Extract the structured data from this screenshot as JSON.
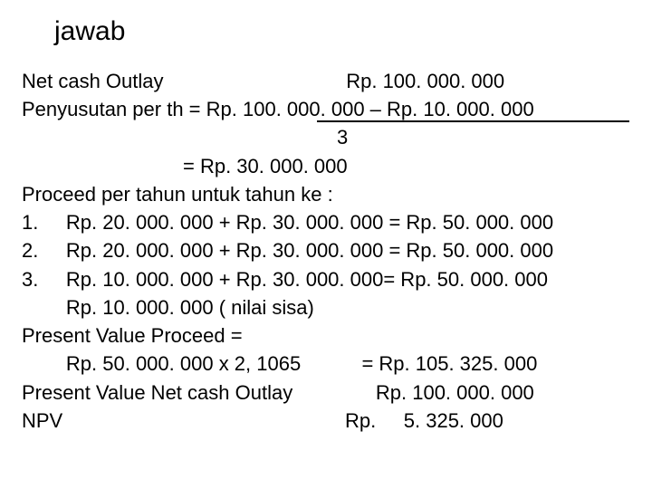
{
  "title": "jawab",
  "lines": {
    "l1": "Net cash Outlay                                 Rp. 100. 000. 000",
    "l2": "Penyusutan per th = Rp. 100. 000. 000 – Rp. 10. 000. 000",
    "l3": "3",
    "l4": "= Rp. 30. 000. 000",
    "l5": "Proceed per tahun untuk tahun ke :",
    "l6": "1.     Rp. 20. 000. 000 + Rp. 30. 000. 000 = Rp. 50. 000. 000",
    "l7": "2.     Rp. 20. 000. 000 + Rp. 30. 000. 000 = Rp. 50. 000. 000",
    "l8": "3.     Rp. 10. 000. 000 + Rp. 30. 000. 000= Rp. 50. 000. 000",
    "l9": "        Rp. 10. 000. 000 ( nilai sisa)",
    "l10": "Present Value Proceed =",
    "l11": "        Rp. 50. 000. 000 x 2, 1065           = Rp. 105. 325. 000",
    "l12": "Present Value Net cash Outlay               Rp. 100. 000. 000",
    "l13": "NPV                                                   Rp.     5. 325. 000"
  },
  "style": {
    "background_color": "#ffffff",
    "text_color": "#000000",
    "title_fontsize": 30,
    "body_fontsize": 22,
    "font_family": "Arial"
  }
}
